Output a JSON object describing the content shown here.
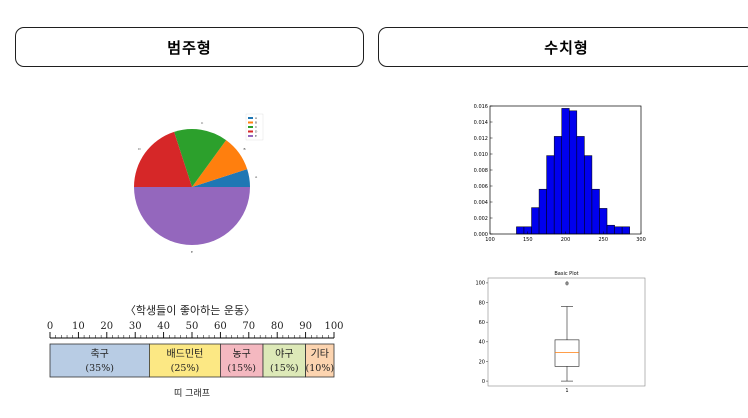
{
  "tabs": [
    {
      "label": "범주형"
    },
    {
      "label": "수치형"
    }
  ],
  "pie": {
    "chart_data": {
      "type": "pie",
      "labels": [
        "A",
        "B",
        "C",
        "D",
        "E"
      ],
      "values": [
        5,
        10,
        15,
        20,
        50
      ],
      "colors": [
        "#1f77b4",
        "#ff7f0e",
        "#2ca02c",
        "#d62728",
        "#9467bd"
      ],
      "legend": "top-right"
    }
  },
  "histogram": {
    "chart_data": {
      "type": "bar",
      "bin_centers": [
        110,
        120,
        130,
        140,
        150,
        160,
        170,
        180,
        190,
        200,
        210,
        220,
        230,
        240,
        250,
        260,
        270,
        280,
        290
      ],
      "values": [
        0,
        0,
        0,
        0.0009,
        0.0009,
        0.0033,
        0.0056,
        0.0098,
        0.0122,
        0.0157,
        0.0154,
        0.0122,
        0.0098,
        0.0056,
        0.0032,
        0.0011,
        0.0009,
        0.0009,
        0
      ],
      "xlim": [
        100,
        300
      ],
      "ylim": [
        0,
        0.016
      ],
      "xticks": [
        "100",
        "150",
        "200",
        "250",
        "300"
      ],
      "yticks": [
        "0.000",
        "0.002",
        "0.004",
        "0.006",
        "0.008",
        "0.010",
        "0.012",
        "0.014",
        "0.016"
      ],
      "bar_color": "#0000ee"
    }
  },
  "boxplot": {
    "chart_data": {
      "type": "box",
      "title": "Basic Plot",
      "category": "1",
      "min": 0,
      "q1": 15,
      "median": 29,
      "q3": 42,
      "max": 76,
      "outliers": [
        99,
        100
      ],
      "ylim": [
        -5,
        105
      ],
      "yticks": [
        "0",
        "20",
        "40",
        "60",
        "80",
        "100"
      ]
    }
  },
  "band": {
    "title": "〈학생들이 좋아하는 운동〉",
    "caption": "띠 그래프",
    "scale_ticks": [
      "0",
      "10",
      "20",
      "30",
      "40",
      "50",
      "60",
      "70",
      "80",
      "90",
      "100"
    ],
    "chart_data": {
      "type": "stacked-bar",
      "segments": [
        {
          "label": "축구",
          "percent_label": "(35%)",
          "value": 35,
          "color": "#b8cce4"
        },
        {
          "label": "배드민턴",
          "percent_label": "(25%)",
          "value": 25,
          "color": "#fce884"
        },
        {
          "label": "농구",
          "percent_label": "(15%)",
          "value": 15,
          "color": "#f4b8c0"
        },
        {
          "label": "야구",
          "percent_label": "(15%)",
          "value": 15,
          "color": "#dde9b8"
        },
        {
          "label": "기타",
          "percent_label": "(10%)",
          "value": 10,
          "color": "#fcd4b0"
        }
      ]
    }
  }
}
